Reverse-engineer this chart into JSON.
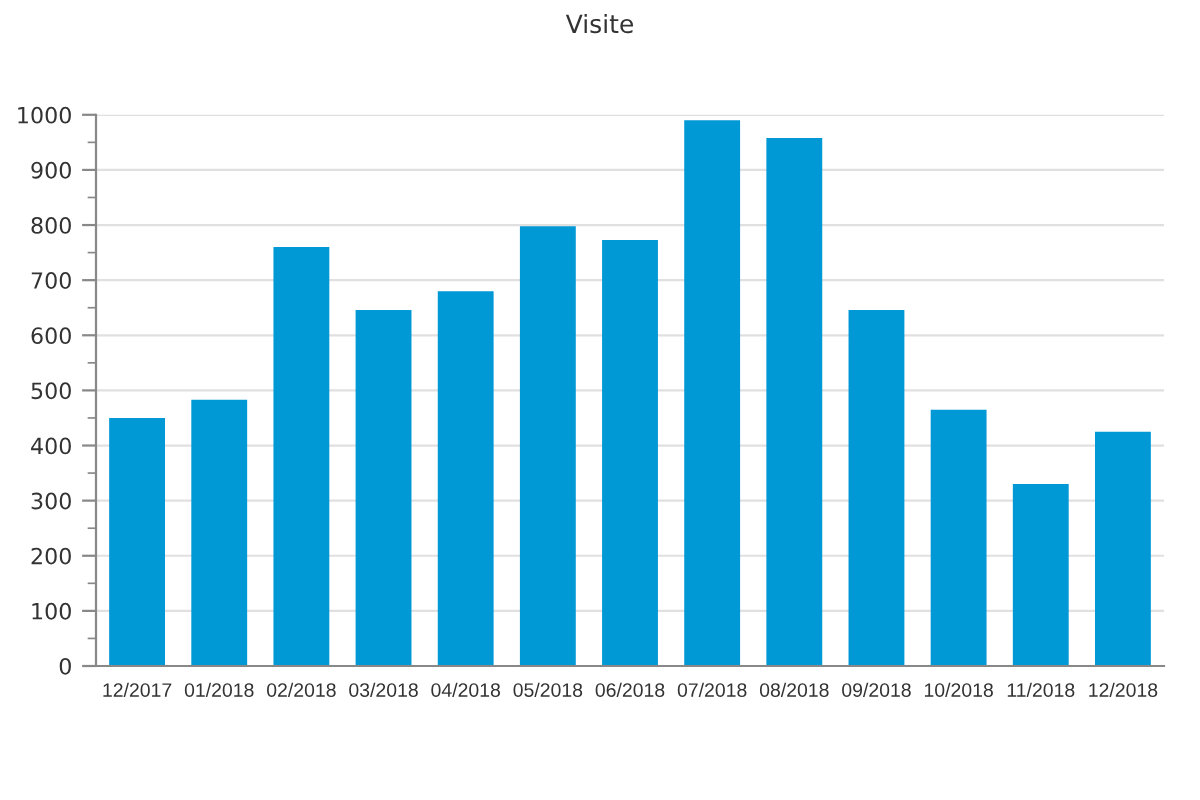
{
  "chart_data": {
    "type": "bar",
    "title": "Visite",
    "categories": [
      "12/2017",
      "01/2018",
      "02/2018",
      "03/2018",
      "04/2018",
      "05/2018",
      "06/2018",
      "07/2018",
      "08/2018",
      "09/2018",
      "10/2018",
      "11/2018",
      "12/2018"
    ],
    "values": [
      450,
      483,
      760,
      646,
      680,
      798,
      773,
      990,
      958,
      646,
      465,
      330,
      425
    ],
    "color": "#0099d6",
    "ylim": [
      0,
      1000
    ],
    "yticks": [
      0,
      {
        "value": 50,
        "label": null
      },
      100,
      {
        "value": 150,
        "label": null
      },
      200,
      {
        "value": 250,
        "label": null
      },
      300,
      {
        "value": 350,
        "label": null
      },
      400,
      {
        "value": 450,
        "label": null
      },
      500,
      {
        "value": 550,
        "label": null
      },
      600,
      {
        "value": 650,
        "label": null
      },
      700,
      {
        "value": 750,
        "label": null
      },
      800,
      {
        "value": 850,
        "label": null
      },
      900,
      {
        "value": 950,
        "label": null
      },
      1000
    ],
    "grid": "y",
    "legend": false
  }
}
